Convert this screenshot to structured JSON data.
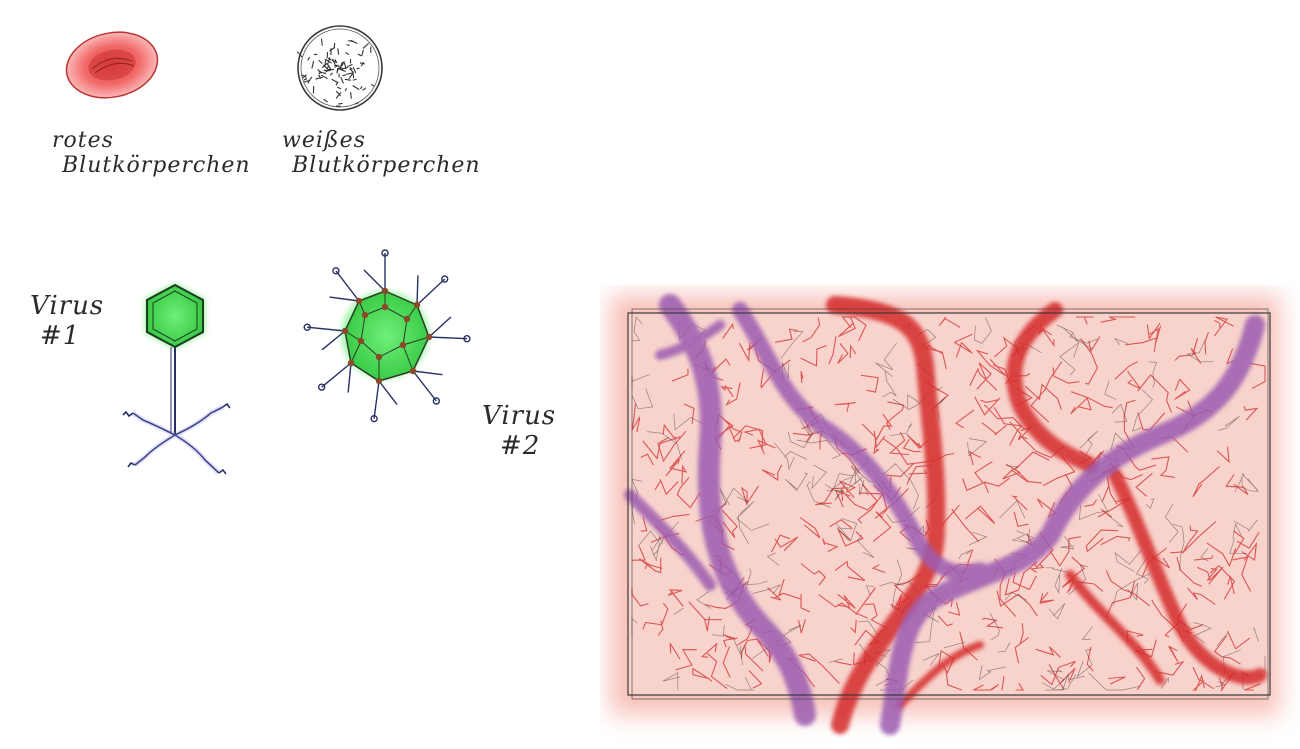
{
  "labels": {
    "red_cell": [
      "rotes",
      "Blutkörperchen"
    ],
    "white_cell": [
      "weißes",
      "Blutkörperchen"
    ],
    "virus1": [
      "Virus",
      "#1"
    ],
    "virus2": [
      "Virus",
      "#2"
    ]
  },
  "colors": {
    "red_cell": "#f26a6a",
    "virus_green": "#3fe04a",
    "vessel_purple": "#9b5bb0",
    "vessel_red": "#d42b2b",
    "tissue_bg": "#f8d3cc",
    "ink": "#2b2b2b"
  }
}
